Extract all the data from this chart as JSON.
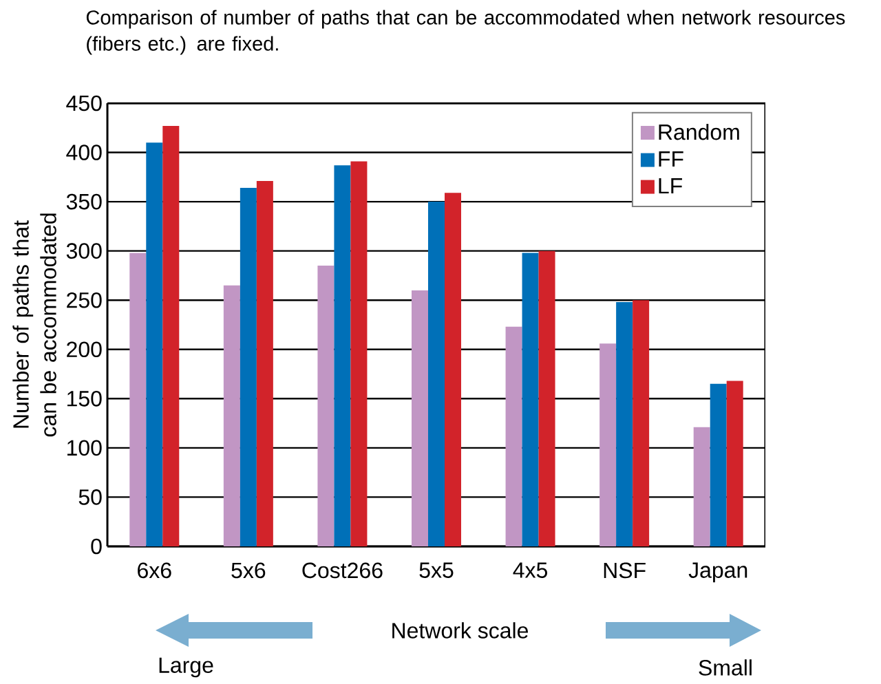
{
  "chart_data": {
    "type": "bar",
    "title": "Comparison of number of paths that can be accommodated when network resources (fibers etc.) are fixed.",
    "xlabel": "Network scale",
    "ylabel": "Number of paths that can be accommodated",
    "categories": [
      "6x6",
      "5x6",
      "Cost266",
      "5x5",
      "4x5",
      "NSF",
      "Japan"
    ],
    "series": [
      {
        "name": "Random",
        "color": "#c196c4",
        "values": [
          298,
          265,
          285,
          260,
          223,
          206,
          121
        ]
      },
      {
        "name": "FF",
        "color": "#0070b8",
        "values": [
          410,
          364,
          387,
          350,
          298,
          248,
          165
        ]
      },
      {
        "name": "LF",
        "color": "#d2232a",
        "values": [
          427,
          371,
          391,
          359,
          300,
          250,
          168
        ]
      }
    ],
    "ylim": [
      0,
      450
    ],
    "yticks": [
      0,
      50,
      100,
      150,
      200,
      250,
      300,
      350,
      400,
      450
    ],
    "grid": "y",
    "legend": "top right",
    "annotations": [
      "Large",
      "Small"
    ]
  }
}
